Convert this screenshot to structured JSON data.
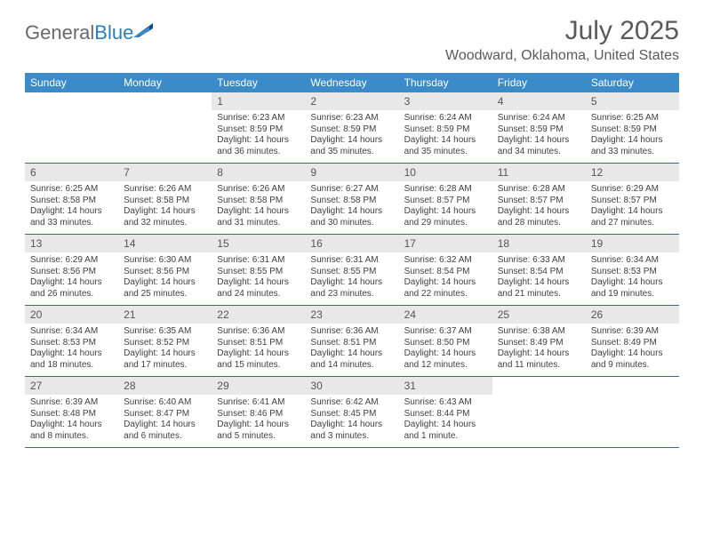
{
  "logo": {
    "general": "General",
    "blue": "Blue"
  },
  "title": "July 2025",
  "subtitle": "Woodward, Oklahoma, United States",
  "colors": {
    "header_bg": "#3b8bc9",
    "header_text": "#ffffff",
    "daynum_bg": "#e8e8e8",
    "daynum_text": "#555555",
    "body_text": "#404040",
    "rule": "#2f6ca3",
    "logo_gray": "#6a6a6a",
    "logo_blue": "#2a7fbf",
    "title_color": "#5a5a5a"
  },
  "weekdays": [
    "Sunday",
    "Monday",
    "Tuesday",
    "Wednesday",
    "Thursday",
    "Friday",
    "Saturday"
  ],
  "weeks": [
    [
      {
        "n": "",
        "lines": []
      },
      {
        "n": "",
        "lines": []
      },
      {
        "n": "1",
        "lines": [
          "Sunrise: 6:23 AM",
          "Sunset: 8:59 PM",
          "Daylight: 14 hours and 36 minutes."
        ]
      },
      {
        "n": "2",
        "lines": [
          "Sunrise: 6:23 AM",
          "Sunset: 8:59 PM",
          "Daylight: 14 hours and 35 minutes."
        ]
      },
      {
        "n": "3",
        "lines": [
          "Sunrise: 6:24 AM",
          "Sunset: 8:59 PM",
          "Daylight: 14 hours and 35 minutes."
        ]
      },
      {
        "n": "4",
        "lines": [
          "Sunrise: 6:24 AM",
          "Sunset: 8:59 PM",
          "Daylight: 14 hours and 34 minutes."
        ]
      },
      {
        "n": "5",
        "lines": [
          "Sunrise: 6:25 AM",
          "Sunset: 8:59 PM",
          "Daylight: 14 hours and 33 minutes."
        ]
      }
    ],
    [
      {
        "n": "6",
        "lines": [
          "Sunrise: 6:25 AM",
          "Sunset: 8:58 PM",
          "Daylight: 14 hours and 33 minutes."
        ]
      },
      {
        "n": "7",
        "lines": [
          "Sunrise: 6:26 AM",
          "Sunset: 8:58 PM",
          "Daylight: 14 hours and 32 minutes."
        ]
      },
      {
        "n": "8",
        "lines": [
          "Sunrise: 6:26 AM",
          "Sunset: 8:58 PM",
          "Daylight: 14 hours and 31 minutes."
        ]
      },
      {
        "n": "9",
        "lines": [
          "Sunrise: 6:27 AM",
          "Sunset: 8:58 PM",
          "Daylight: 14 hours and 30 minutes."
        ]
      },
      {
        "n": "10",
        "lines": [
          "Sunrise: 6:28 AM",
          "Sunset: 8:57 PM",
          "Daylight: 14 hours and 29 minutes."
        ]
      },
      {
        "n": "11",
        "lines": [
          "Sunrise: 6:28 AM",
          "Sunset: 8:57 PM",
          "Daylight: 14 hours and 28 minutes."
        ]
      },
      {
        "n": "12",
        "lines": [
          "Sunrise: 6:29 AM",
          "Sunset: 8:57 PM",
          "Daylight: 14 hours and 27 minutes."
        ]
      }
    ],
    [
      {
        "n": "13",
        "lines": [
          "Sunrise: 6:29 AM",
          "Sunset: 8:56 PM",
          "Daylight: 14 hours and 26 minutes."
        ]
      },
      {
        "n": "14",
        "lines": [
          "Sunrise: 6:30 AM",
          "Sunset: 8:56 PM",
          "Daylight: 14 hours and 25 minutes."
        ]
      },
      {
        "n": "15",
        "lines": [
          "Sunrise: 6:31 AM",
          "Sunset: 8:55 PM",
          "Daylight: 14 hours and 24 minutes."
        ]
      },
      {
        "n": "16",
        "lines": [
          "Sunrise: 6:31 AM",
          "Sunset: 8:55 PM",
          "Daylight: 14 hours and 23 minutes."
        ]
      },
      {
        "n": "17",
        "lines": [
          "Sunrise: 6:32 AM",
          "Sunset: 8:54 PM",
          "Daylight: 14 hours and 22 minutes."
        ]
      },
      {
        "n": "18",
        "lines": [
          "Sunrise: 6:33 AM",
          "Sunset: 8:54 PM",
          "Daylight: 14 hours and 21 minutes."
        ]
      },
      {
        "n": "19",
        "lines": [
          "Sunrise: 6:34 AM",
          "Sunset: 8:53 PM",
          "Daylight: 14 hours and 19 minutes."
        ]
      }
    ],
    [
      {
        "n": "20",
        "lines": [
          "Sunrise: 6:34 AM",
          "Sunset: 8:53 PM",
          "Daylight: 14 hours and 18 minutes."
        ]
      },
      {
        "n": "21",
        "lines": [
          "Sunrise: 6:35 AM",
          "Sunset: 8:52 PM",
          "Daylight: 14 hours and 17 minutes."
        ]
      },
      {
        "n": "22",
        "lines": [
          "Sunrise: 6:36 AM",
          "Sunset: 8:51 PM",
          "Daylight: 14 hours and 15 minutes."
        ]
      },
      {
        "n": "23",
        "lines": [
          "Sunrise: 6:36 AM",
          "Sunset: 8:51 PM",
          "Daylight: 14 hours and 14 minutes."
        ]
      },
      {
        "n": "24",
        "lines": [
          "Sunrise: 6:37 AM",
          "Sunset: 8:50 PM",
          "Daylight: 14 hours and 12 minutes."
        ]
      },
      {
        "n": "25",
        "lines": [
          "Sunrise: 6:38 AM",
          "Sunset: 8:49 PM",
          "Daylight: 14 hours and 11 minutes."
        ]
      },
      {
        "n": "26",
        "lines": [
          "Sunrise: 6:39 AM",
          "Sunset: 8:49 PM",
          "Daylight: 14 hours and 9 minutes."
        ]
      }
    ],
    [
      {
        "n": "27",
        "lines": [
          "Sunrise: 6:39 AM",
          "Sunset: 8:48 PM",
          "Daylight: 14 hours and 8 minutes."
        ]
      },
      {
        "n": "28",
        "lines": [
          "Sunrise: 6:40 AM",
          "Sunset: 8:47 PM",
          "Daylight: 14 hours and 6 minutes."
        ]
      },
      {
        "n": "29",
        "lines": [
          "Sunrise: 6:41 AM",
          "Sunset: 8:46 PM",
          "Daylight: 14 hours and 5 minutes."
        ]
      },
      {
        "n": "30",
        "lines": [
          "Sunrise: 6:42 AM",
          "Sunset: 8:45 PM",
          "Daylight: 14 hours and 3 minutes."
        ]
      },
      {
        "n": "31",
        "lines": [
          "Sunrise: 6:43 AM",
          "Sunset: 8:44 PM",
          "Daylight: 14 hours and 1 minute."
        ]
      },
      {
        "n": "",
        "lines": []
      },
      {
        "n": "",
        "lines": []
      }
    ]
  ]
}
